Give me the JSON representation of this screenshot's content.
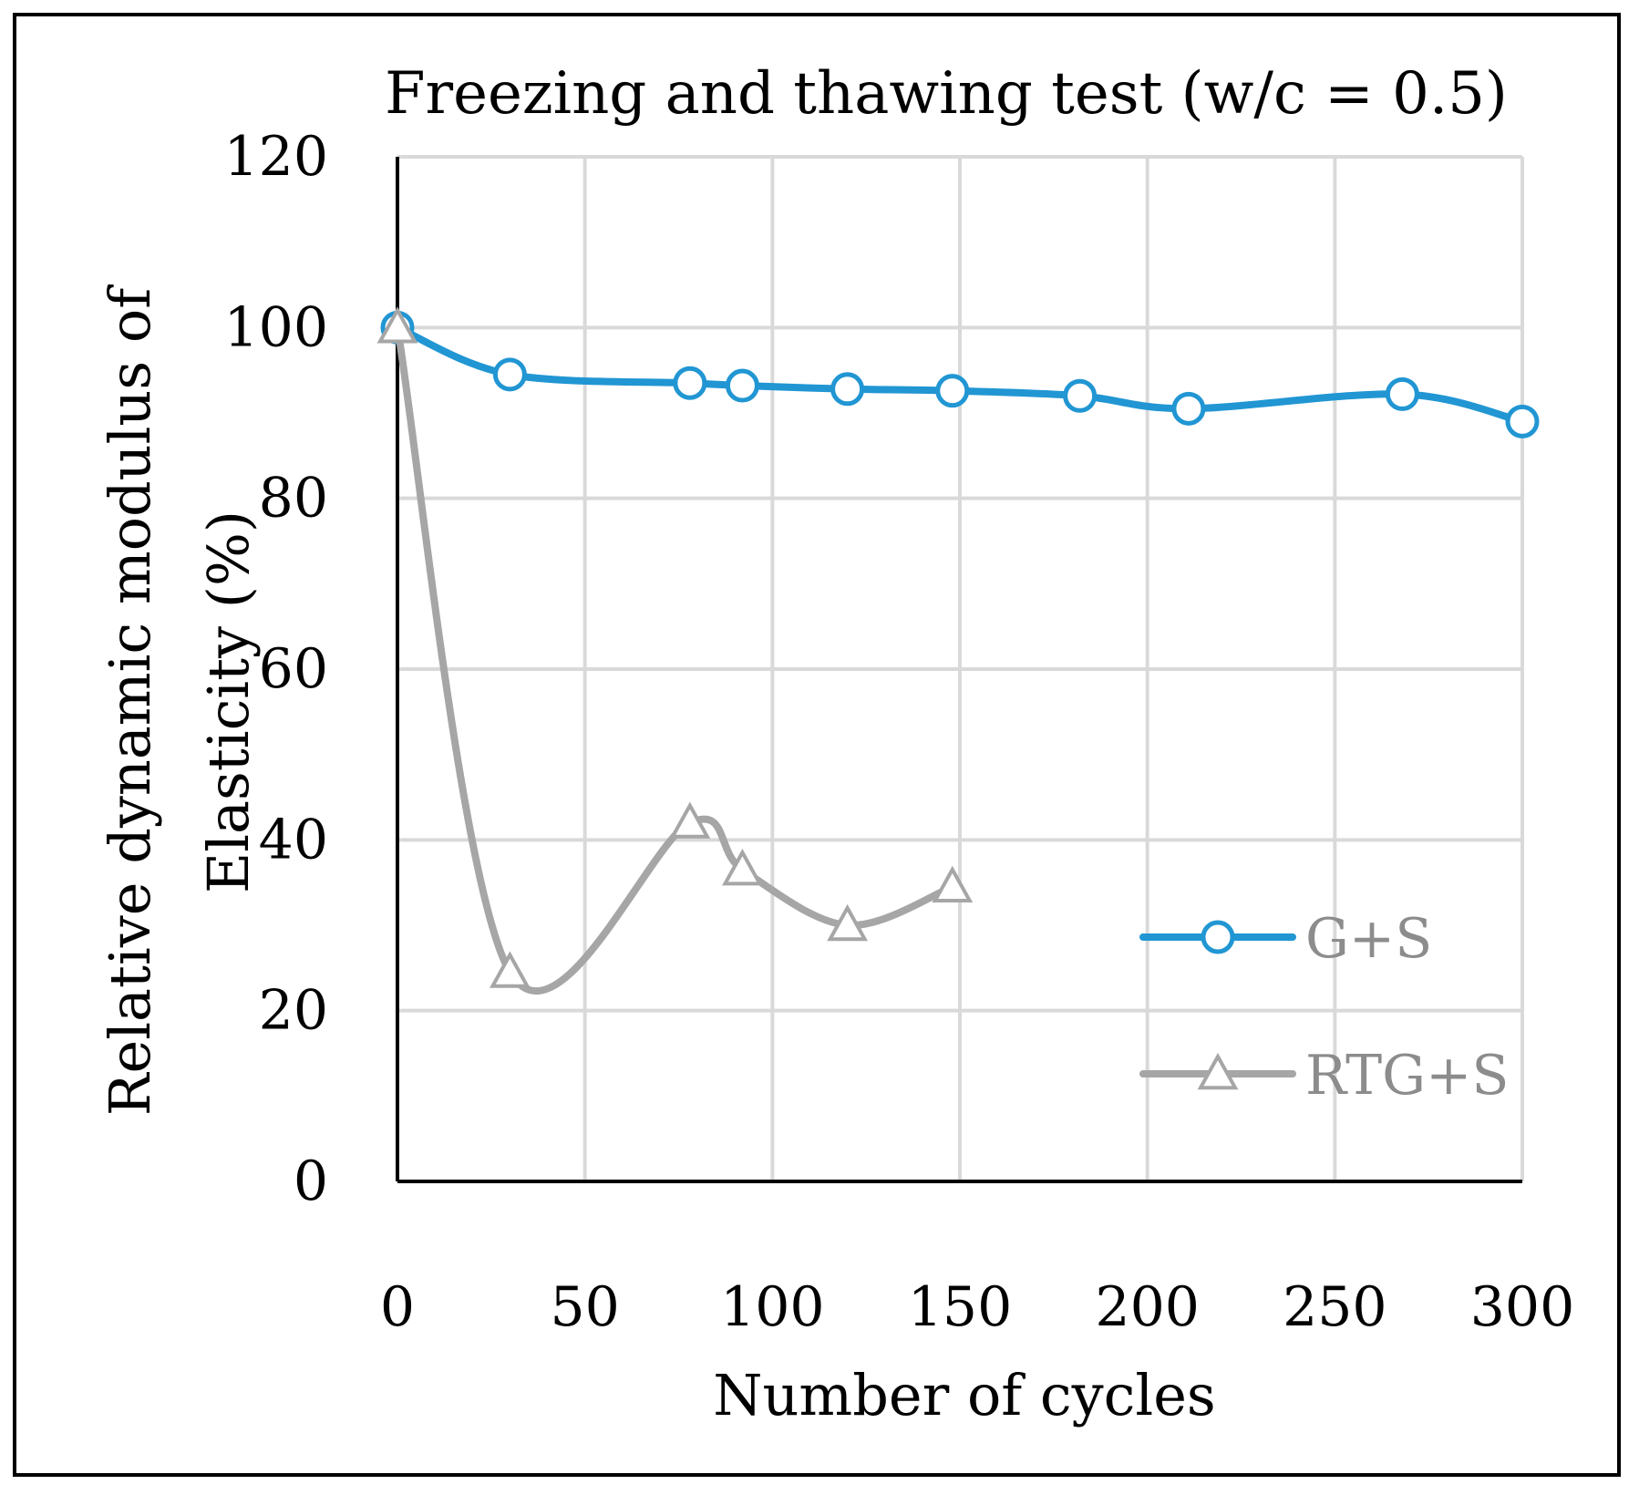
{
  "chart_data": {
    "type": "line",
    "title": "Freezing and thawing test (w/c = 0.5)",
    "xlabel": "Number of cycles",
    "ylabel_line1": "Relative dynamic modulus of",
    "ylabel_line2": "Elasticity (%)",
    "xlim": [
      0,
      300
    ],
    "ylim": [
      0,
      120
    ],
    "xticks": [
      0,
      50,
      100,
      150,
      200,
      250,
      300
    ],
    "yticks": [
      0,
      20,
      40,
      60,
      80,
      100,
      120
    ],
    "grid": true,
    "legend_position": "right",
    "series": [
      {
        "name": "G+S",
        "color": "#2196d3",
        "marker": "circle",
        "points": [
          [
            0,
            100
          ],
          [
            30,
            94.5
          ],
          [
            78,
            93.5
          ],
          [
            92,
            93.2
          ],
          [
            120,
            92.8
          ],
          [
            148,
            92.6
          ],
          [
            182,
            92
          ],
          [
            211,
            90.5
          ],
          [
            268,
            92.2
          ],
          [
            300,
            89
          ]
        ]
      },
      {
        "name": "RTG+S",
        "color": "#a6a6a6",
        "marker": "triangle",
        "points": [
          [
            0,
            100
          ],
          [
            30,
            24.5
          ],
          [
            78,
            42
          ],
          [
            92,
            36.5
          ],
          [
            120,
            30
          ],
          [
            148,
            34.5
          ]
        ]
      }
    ]
  }
}
